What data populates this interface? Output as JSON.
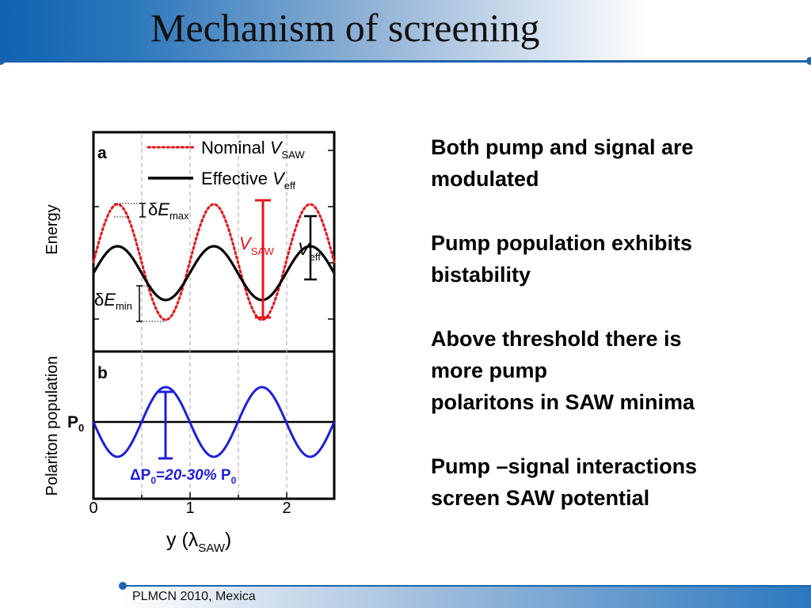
{
  "slide": {
    "title": "Mechanism of screening",
    "footer": "PLMCN 2010, Mexica"
  },
  "bullets": [
    {
      "lines": [
        "Both pump and signal are",
        "modulated"
      ]
    },
    {
      "lines": [
        "Pump population exhibits",
        "bistability"
      ]
    },
    {
      "lines": [
        "Above threshold there is",
        "more pump",
        "polaritons in SAW minima"
      ]
    },
    {
      "lines": [
        "Pump –signal interactions",
        "screen SAW potential"
      ]
    }
  ],
  "figure": {
    "panel_a": {
      "label": "a",
      "ylabel": "Energy",
      "legend": [
        {
          "name": "Nominal",
          "symbol": "V",
          "subscript": "SAW",
          "style": "dotted",
          "color": "#e0161b"
        },
        {
          "name": "Effective",
          "symbol": "V",
          "subscript": "eff",
          "style": "solid",
          "color": "#000000"
        }
      ],
      "annotations": {
        "delta_e_max": {
          "prefix": "δ",
          "symbol": "E",
          "subscript": "max"
        },
        "delta_e_min": {
          "prefix": "δ",
          "symbol": "E",
          "subscript": "min"
        },
        "v_saw": {
          "symbol": "V",
          "subscript": "SAW"
        },
        "v_eff": {
          "symbol": "V",
          "subscript": "eff"
        }
      }
    },
    "panel_b": {
      "label": "b",
      "ylabel": "Polariton population",
      "p0_label": {
        "symbol": "P",
        "subscript": "0"
      },
      "delta_p": {
        "prefix": "ΔP",
        "sub": "0",
        "eq": "=",
        "range": "20-30%",
        "suffix": " P",
        "suffix_sub": "0"
      },
      "curve_color": "#1f1fd6"
    },
    "x_axis": {
      "label_prefix": "y (",
      "label_lambda": "λ",
      "label_sub": "SAW",
      "label_suffix": ")",
      "ticks": [
        "0",
        "1",
        "2"
      ],
      "range": [
        0,
        2.5
      ]
    }
  },
  "chart_data": [
    {
      "type": "line",
      "title": "",
      "xlabel": "y (λSAW)",
      "ylabel": "Energy",
      "xlim": [
        0,
        2.5
      ],
      "series": [
        {
          "name": "Nominal VSAW",
          "style": "dotted",
          "period": 1,
          "amplitude": 1.0,
          "phase_max_x": 0.25
        },
        {
          "name": "Effective Veff",
          "style": "solid",
          "period": 1,
          "amplitude": 0.62,
          "phase_max_x": 0.25
        }
      ]
    },
    {
      "type": "line",
      "title": "",
      "xlabel": "y (λSAW)",
      "ylabel": "Polariton population",
      "xlim": [
        0,
        2.5
      ],
      "series": [
        {
          "name": "",
          "period": 1,
          "amplitude_fraction_of_P0": 0.25,
          "phase_max_x": 0.75
        }
      ]
    }
  ]
}
